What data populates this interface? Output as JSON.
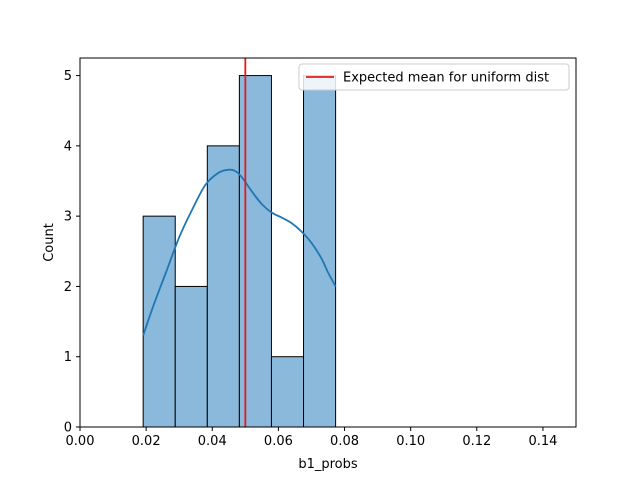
{
  "chart_data": {
    "type": "bar",
    "subtype": "histogram-with-kde",
    "title": "",
    "xlabel": "b1_probs",
    "ylabel": "Count",
    "xlim": [
      0.0,
      0.15
    ],
    "ylim": [
      0,
      5.25
    ],
    "x_ticks": [
      "0.00",
      "0.02",
      "0.04",
      "0.06",
      "0.08",
      "0.10",
      "0.12",
      "0.14"
    ],
    "x_tick_values": [
      0.0,
      0.02,
      0.04,
      0.06,
      0.08,
      0.1,
      0.12,
      0.14
    ],
    "y_ticks": [
      "0",
      "1",
      "2",
      "3",
      "4",
      "5"
    ],
    "y_tick_values": [
      0,
      1,
      2,
      3,
      4,
      5
    ],
    "bins": [
      {
        "start": 0.0191,
        "end": 0.0288,
        "count": 3
      },
      {
        "start": 0.0288,
        "end": 0.0385,
        "count": 2
      },
      {
        "start": 0.0385,
        "end": 0.0482,
        "count": 4
      },
      {
        "start": 0.0482,
        "end": 0.0579,
        "count": 5
      },
      {
        "start": 0.0579,
        "end": 0.0676,
        "count": 1
      },
      {
        "start": 0.0676,
        "end": 0.0773,
        "count": 5
      }
    ],
    "kde": {
      "x": [
        0.0191,
        0.022,
        0.026,
        0.03,
        0.034,
        0.038,
        0.042,
        0.045,
        0.047,
        0.049,
        0.052,
        0.055,
        0.058,
        0.061,
        0.064,
        0.067,
        0.07,
        0.073,
        0.075,
        0.0773
      ],
      "y": [
        1.3,
        1.7,
        2.2,
        2.7,
        3.1,
        3.45,
        3.62,
        3.66,
        3.64,
        3.55,
        3.35,
        3.17,
        3.05,
        2.98,
        2.9,
        2.78,
        2.62,
        2.4,
        2.2,
        2.0
      ]
    },
    "reference_line": {
      "x": 0.05,
      "label": "Expected mean for uniform dist",
      "color": "#e41a1c"
    },
    "bar_color": "#8ab9dc",
    "bar_edge_color": "#000000",
    "kde_color": "#1f77b4",
    "legend_position": "top-right"
  }
}
